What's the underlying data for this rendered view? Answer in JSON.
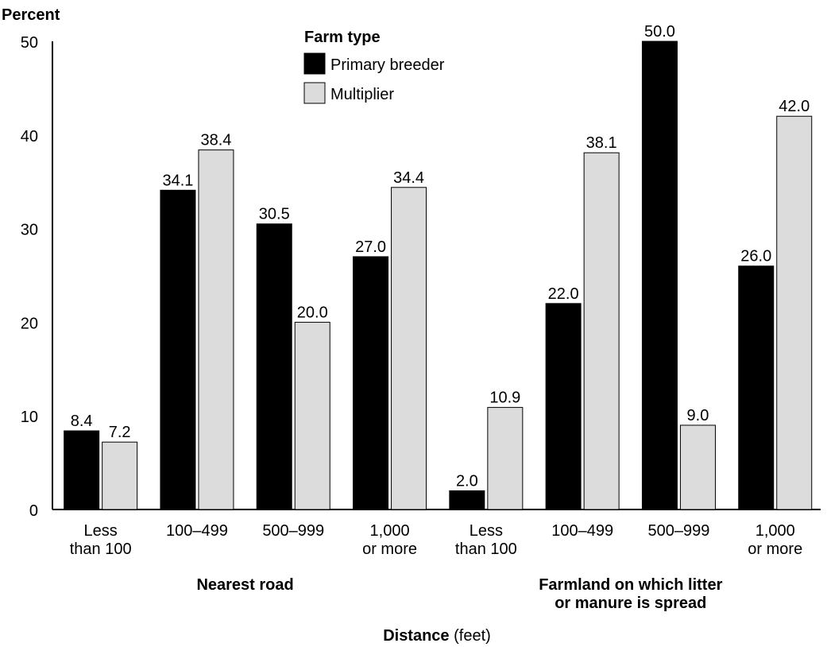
{
  "chart_data": {
    "type": "bar",
    "ylabel": "Percent",
    "xlabel_bold": "Distance",
    "xlabel_rest": " (feet)",
    "ylim": [
      0,
      50
    ],
    "yticks": [
      "0",
      "10",
      "20",
      "30",
      "40",
      "50"
    ],
    "grid": false,
    "legend_title": "Farm type",
    "legend_position": "top-center",
    "colors": {
      "Primary breeder": "#000000",
      "Multiplier": "#dcdcdc"
    },
    "groups": [
      {
        "label_lines": [
          "Nearest road"
        ],
        "categories": [
          [
            "Less",
            "than 100"
          ],
          [
            "100–499"
          ],
          [
            "500–999"
          ],
          [
            "1,000",
            "or more"
          ]
        ],
        "series": [
          {
            "name": "Primary breeder",
            "values": [
              8.4,
              34.1,
              30.5,
              27.0
            ]
          },
          {
            "name": "Multiplier",
            "values": [
              7.2,
              38.4,
              20.0,
              34.4
            ]
          }
        ]
      },
      {
        "label_lines": [
          "Farmland on which litter",
          "or manure is spread"
        ],
        "categories": [
          [
            "Less",
            "than 100"
          ],
          [
            "100–499"
          ],
          [
            "500–999"
          ],
          [
            "1,000",
            "or more"
          ]
        ],
        "series": [
          {
            "name": "Primary breeder",
            "values": [
              2.0,
              22.0,
              50.0,
              26.0
            ]
          },
          {
            "name": "Multiplier",
            "values": [
              10.9,
              38.1,
              9.0,
              42.0
            ]
          }
        ]
      }
    ]
  }
}
